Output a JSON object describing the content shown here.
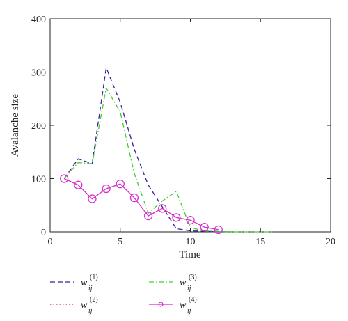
{
  "chart_data": {
    "type": "line",
    "xlabel": "Time",
    "ylabel": "Avalanche size",
    "xlim": [
      0,
      20
    ],
    "ylim": [
      0,
      400
    ],
    "xticks": [
      0,
      5,
      10,
      15,
      20
    ],
    "yticks": [
      0,
      100,
      200,
      300,
      400
    ],
    "grid": false,
    "legend_position": "below",
    "series": [
      {
        "name": "w_ij^(1)",
        "legend_base": "w",
        "legend_sub": "ij",
        "legend_sup": "(1)",
        "color": "#3b1e99",
        "dash": "dashed",
        "x": [
          1,
          2,
          3,
          4,
          5,
          6,
          7,
          8,
          9,
          10,
          11,
          12
        ],
        "y": [
          100,
          137,
          128,
          308,
          243,
          155,
          88,
          47,
          6,
          2,
          1,
          0
        ]
      },
      {
        "name": "w_ij^(2)",
        "legend_base": "w",
        "legend_sub": "ij",
        "legend_sup": "(2)",
        "color": "#cc2a5a",
        "dash": "dotted",
        "x": [
          1,
          2,
          3,
          4,
          5,
          6,
          7,
          8,
          9,
          10,
          11,
          12
        ],
        "y": [
          100,
          88,
          62,
          81,
          90,
          64,
          30,
          44,
          27,
          22,
          9,
          4
        ]
      },
      {
        "name": "w_ij^(3)",
        "legend_base": "w",
        "legend_sub": "ij",
        "legend_sup": "(3)",
        "color": "#44cc33",
        "dash": "dashdot",
        "x": [
          1,
          2,
          3,
          4,
          5,
          6,
          7,
          8,
          9,
          10,
          11,
          12,
          13,
          14,
          15,
          16
        ],
        "y": [
          100,
          130,
          128,
          270,
          225,
          110,
          35,
          58,
          76,
          8,
          2,
          1,
          0,
          0,
          0,
          0
        ]
      },
      {
        "name": "w_ij^(4)",
        "legend_base": "w",
        "legend_sub": "ij",
        "legend_sup": "(4)",
        "color": "#d62fd0",
        "dash": "solid",
        "marker": "circle",
        "x": [
          1,
          2,
          3,
          4,
          5,
          6,
          7,
          8,
          9,
          10,
          11,
          12
        ],
        "y": [
          100,
          88,
          62,
          81,
          90,
          64,
          30,
          44,
          27,
          22,
          9,
          4
        ]
      }
    ]
  }
}
